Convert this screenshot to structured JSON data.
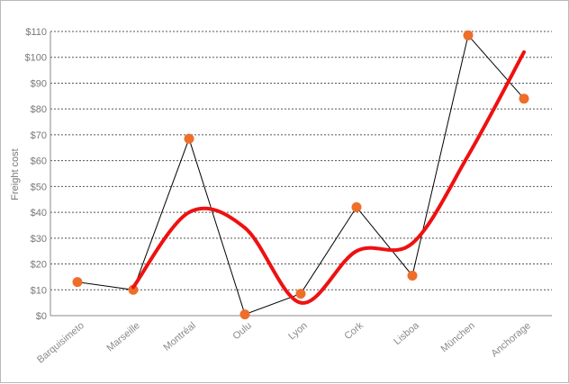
{
  "chart_data": {
    "type": "line",
    "ylabel": "Freight cost",
    "xlabel": "",
    "ylim": [
      0,
      110
    ],
    "ytick_step": 10,
    "ytick_prefix": "$",
    "grid": true,
    "categories": [
      "Barquisimeto",
      "Marseille",
      "Montréal",
      "Oulu",
      "Lyon",
      "Cork",
      "Lisboa",
      "München",
      "Anchorage"
    ],
    "series": [
      {
        "values": [
          13,
          10,
          68.5,
          0.5,
          8.5,
          42,
          15.5,
          108.5,
          84
        ],
        "color": "#000000",
        "marker_color": "#ee6e2a"
      },
      {
        "values": [
          null,
          11,
          40,
          34,
          5,
          25,
          28,
          62,
          102
        ],
        "color": "#ee1111",
        "smooth": true
      }
    ]
  }
}
